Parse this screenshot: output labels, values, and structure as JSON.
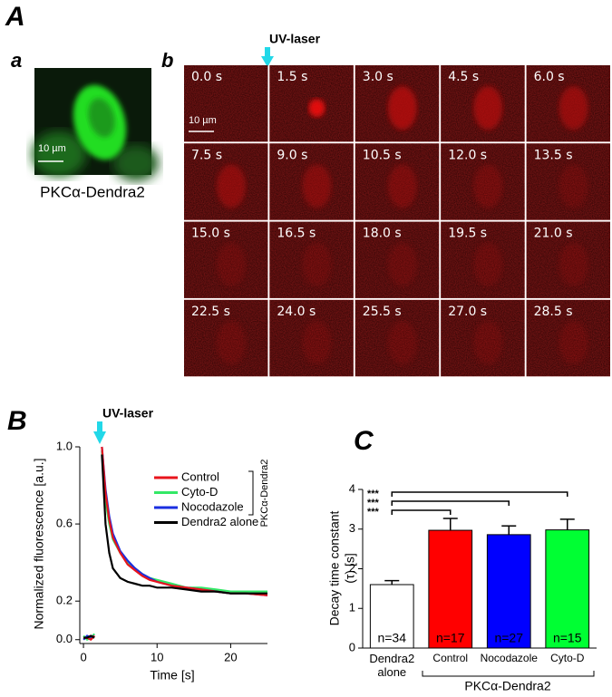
{
  "panel_labels": {
    "A": "A",
    "a": "a",
    "b": "b",
    "B": "B",
    "C": "C"
  },
  "panel_a": {
    "scale_bar": "10 µm",
    "caption": "PKCα-Dendra2"
  },
  "panel_b": {
    "annotation": "UV-laser",
    "scale_bar": "10 µm",
    "frames": [
      "0.0 s",
      "1.5 s",
      "3.0 s",
      "4.5 s",
      "6.0 s",
      "7.5 s",
      "9.0 s",
      "10.5 s",
      "12.0 s",
      "13.5 s",
      "15.0 s",
      "16.5 s",
      "18.0 s",
      "19.5 s",
      "21.0 s",
      "22.5 s",
      "24.0 s",
      "25.5 s",
      "27.0 s",
      "28.5 s"
    ]
  },
  "chart_data": [
    {
      "type": "line",
      "annotation": "UV-laser",
      "xlabel": "Time [s]",
      "ylabel": "Normalized fluorescence [a.u.]",
      "legend_group": "PKCα-Dendra2",
      "x": [
        0,
        0.5,
        1,
        1.5,
        2,
        2.5,
        3,
        3.5,
        4,
        5,
        6,
        7,
        8,
        9,
        10,
        12,
        14,
        16,
        18,
        20,
        22,
        25
      ],
      "series": [
        {
          "name": "Control",
          "color": "#e8141c",
          "values": [
            0.01,
            0.01,
            0.0,
            0.02,
            null,
            1.0,
            0.76,
            0.62,
            0.53,
            0.45,
            0.39,
            0.36,
            0.33,
            0.31,
            0.3,
            0.28,
            0.27,
            0.26,
            0.25,
            0.24,
            0.24,
            0.23
          ]
        },
        {
          "name": "Cyto-D",
          "color": "#33e866",
          "values": [
            0.02,
            0.0,
            0.01,
            0.03,
            null,
            0.98,
            0.72,
            0.6,
            0.52,
            0.45,
            0.4,
            0.37,
            0.34,
            0.32,
            0.31,
            0.29,
            0.27,
            0.27,
            0.26,
            0.25,
            0.25,
            0.25
          ]
        },
        {
          "name": "Nocodazole",
          "color": "#1a2ee0",
          "values": [
            0.0,
            0.02,
            0.01,
            0.02,
            null,
            1.0,
            0.78,
            0.64,
            0.55,
            0.46,
            0.41,
            0.37,
            0.34,
            0.32,
            0.3,
            0.28,
            0.27,
            0.26,
            0.25,
            0.24,
            0.24,
            0.23
          ]
        },
        {
          "name": "Dendra2 alone",
          "color": "#000000",
          "values": [
            0.01,
            0.01,
            0.02,
            0.01,
            null,
            0.96,
            0.6,
            0.45,
            0.37,
            0.32,
            0.3,
            0.29,
            0.28,
            0.28,
            0.27,
            0.27,
            0.26,
            0.25,
            0.25,
            0.24,
            0.24,
            0.24
          ]
        }
      ],
      "xlim": [
        -0.5,
        25
      ],
      "ylim": [
        -0.02,
        1.0
      ],
      "xticks": [
        0,
        10,
        20
      ],
      "yticks": [
        {
          "value": 0,
          "label": "0.0"
        },
        0.2,
        0.6,
        {
          "value": 1,
          "label": "1.0"
        }
      ]
    },
    {
      "type": "bar",
      "ylabel": [
        "Decay time constant",
        "(τ) [s]"
      ],
      "categories": [
        "Dendra2 alone",
        "Control",
        "Nocodazole",
        "Cyto-D"
      ],
      "values": [
        1.6,
        2.97,
        2.86,
        2.98
      ],
      "errors": [
        0.1,
        0.3,
        0.22,
        0.27
      ],
      "colors": [
        "#ffffff",
        "#ff0000",
        "#0000ff",
        "#00ff33"
      ],
      "n_labels": [
        "n=34",
        "n=17",
        "n=27",
        "n=15"
      ],
      "group_label": "PKCα-Dendra2",
      "significance": [
        "***",
        "***",
        "***"
      ],
      "ylim": [
        0,
        4
      ],
      "yticks": [
        0,
        1,
        2,
        3,
        4
      ]
    }
  ]
}
